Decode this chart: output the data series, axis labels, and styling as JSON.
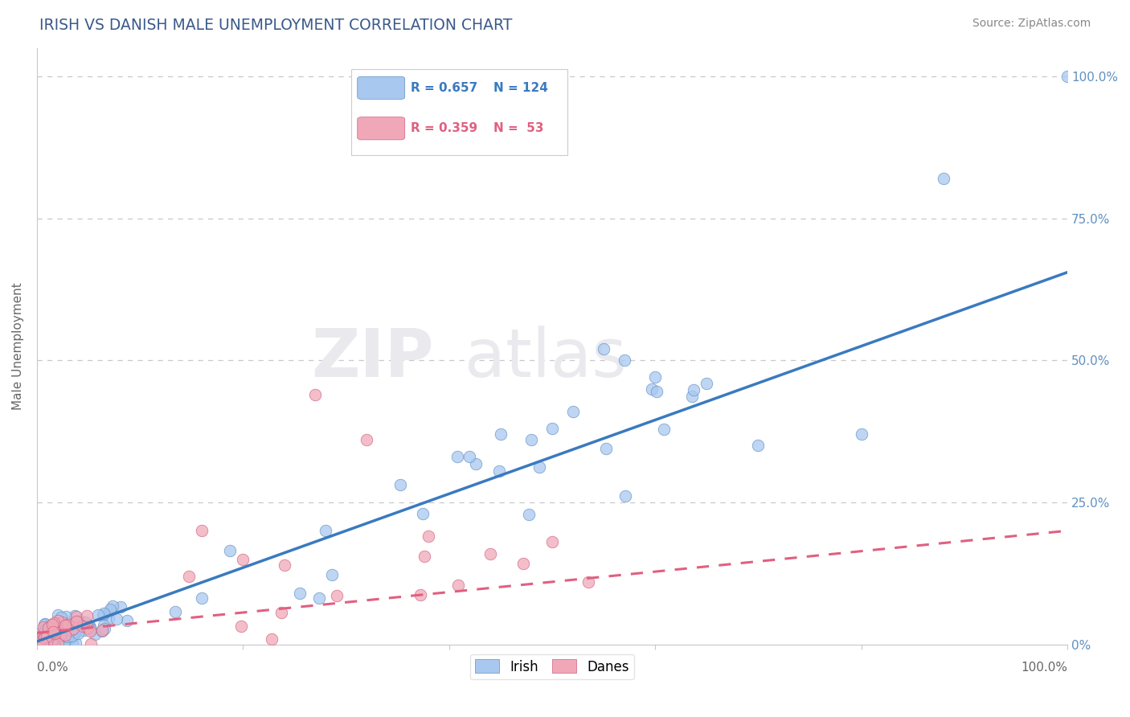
{
  "title": "IRISH VS DANISH MALE UNEMPLOYMENT CORRELATION CHART",
  "source": "Source: ZipAtlas.com",
  "ylabel": "Male Unemployment",
  "legend_irish_R": 0.657,
  "legend_irish_N": 124,
  "legend_danish_R": 0.359,
  "legend_danish_N": 53,
  "blue_line_color": "#3a7abf",
  "pink_line_color": "#e06080",
  "background_color": "#ffffff",
  "grid_color": "#c8c8cc",
  "title_color": "#3a5a8a",
  "source_color": "#888888",
  "irish_scatter_color": "#a8c8f0",
  "danish_scatter_color": "#f0a8b8",
  "irish_scatter_edge": "#6090c0",
  "danish_scatter_edge": "#d06080",
  "axis_label_color": "#6090c0",
  "bottom_label_color": "#666666",
  "ylabel_color": "#666666",
  "watermark_color": "#eaeaee",
  "irish_line_style": "solid",
  "danish_line_style": "dashed",
  "irish_line_intercept": 0.005,
  "irish_line_slope": 0.65,
  "danish_line_intercept": 0.02,
  "danish_line_slope": 0.18
}
